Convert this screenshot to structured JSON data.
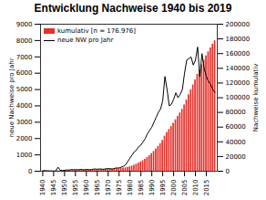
{
  "chart_data": {
    "type": "bar",
    "title": "Entwicklung Nachweise 1940 bis 2019",
    "ylabel": "neue Nachweise pro Jahr",
    "y2label": "Nachweise kumulativ",
    "x": [
      1940,
      1941,
      1942,
      1943,
      1944,
      1945,
      1946,
      1947,
      1948,
      1949,
      1950,
      1951,
      1952,
      1953,
      1954,
      1955,
      1956,
      1957,
      1958,
      1959,
      1960,
      1961,
      1962,
      1963,
      1964,
      1965,
      1966,
      1967,
      1968,
      1969,
      1970,
      1971,
      1972,
      1973,
      1974,
      1975,
      1976,
      1977,
      1978,
      1979,
      1980,
      1981,
      1982,
      1983,
      1984,
      1985,
      1986,
      1987,
      1988,
      1989,
      1990,
      1991,
      1992,
      1993,
      1994,
      1995,
      1996,
      1997,
      1998,
      1999,
      2000,
      2001,
      2002,
      2003,
      2004,
      2005,
      2006,
      2007,
      2008,
      2009,
      2010,
      2011,
      2012,
      2013,
      2014,
      2015,
      2016,
      2017,
      2018,
      2019
    ],
    "xlim": [
      1939,
      2020
    ],
    "xticks": [
      1940,
      1945,
      1950,
      1955,
      1960,
      1965,
      1970,
      1975,
      1980,
      1985,
      1990,
      1995,
      2000,
      2005,
      2010,
      2015
    ],
    "ylim": [
      0,
      9000
    ],
    "yticks": [
      0,
      1000,
      2000,
      3000,
      4000,
      5000,
      6000,
      7000,
      8000,
      9000
    ],
    "y2lim": [
      0,
      200000
    ],
    "y2ticks": [
      0,
      20000,
      40000,
      60000,
      80000,
      100000,
      120000,
      140000,
      160000,
      180000,
      200000
    ],
    "grid": false,
    "legend": "upper left",
    "series": [
      {
        "name": "kumulativ [n = 176.976]",
        "type": "bar",
        "color": "#e8302a",
        "axis": "y2",
        "values": [
          30,
          70,
          100,
          120,
          140,
          150,
          170,
          420,
          480,
          520,
          580,
          660,
          730,
          830,
          920,
          1020,
          1110,
          1220,
          1320,
          1410,
          1520,
          1620,
          1710,
          1830,
          1970,
          2090,
          2230,
          2360,
          2480,
          2630,
          2790,
          2940,
          3070,
          3250,
          3450,
          3650,
          3900,
          4200,
          4600,
          5200,
          6000,
          7000,
          8200,
          9500,
          11000,
          12600,
          14400,
          16400,
          18700,
          21200,
          23900,
          26900,
          30200,
          33800,
          37600,
          41900,
          47700,
          52700,
          56700,
          60800,
          65200,
          70000,
          74500,
          79200,
          84200,
          90200,
          97000,
          103900,
          110900,
          117400,
          124200,
          131800,
          137600,
          144800,
          151100,
          156900,
          162400,
          167700,
          172700,
          177500
        ]
      },
      {
        "name": "neue NW pro Jahr",
        "type": "line",
        "color": "#000000",
        "values": [
          30,
          40,
          30,
          20,
          20,
          10,
          20,
          250,
          60,
          40,
          60,
          80,
          70,
          100,
          90,
          100,
          90,
          110,
          100,
          90,
          110,
          100,
          90,
          120,
          140,
          120,
          140,
          130,
          120,
          150,
          160,
          150,
          130,
          180,
          200,
          200,
          250,
          300,
          400,
          600,
          800,
          1000,
          1200,
          1300,
          1500,
          1600,
          1800,
          2000,
          2300,
          2500,
          2700,
          3000,
          3300,
          3600,
          3800,
          4300,
          5800,
          5000,
          4000,
          4100,
          4400,
          4800,
          4500,
          4700,
          5000,
          6000,
          6800,
          6900,
          7000,
          6500,
          6800,
          7600,
          5800,
          7200,
          6300,
          5800,
          5500,
          5300,
          5000,
          4800
        ]
      }
    ]
  }
}
